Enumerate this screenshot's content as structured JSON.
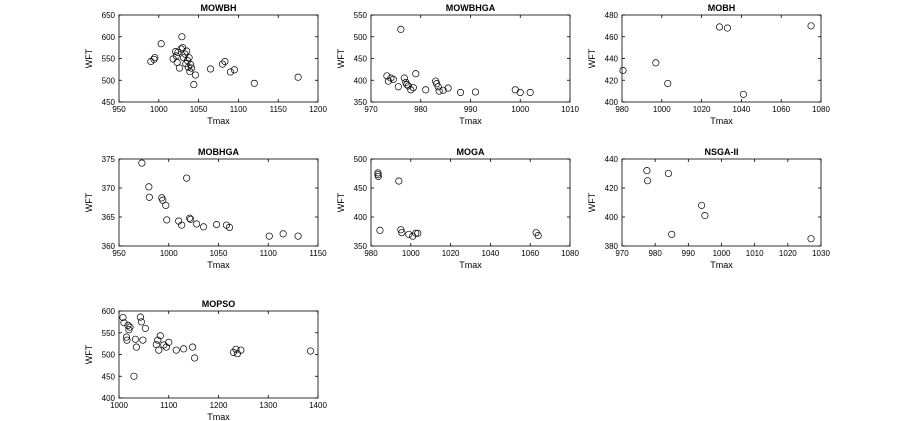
{
  "chart_data": [
    {
      "type": "scatter",
      "title": "MOWBH",
      "xlabel": "Tmax",
      "ylabel": "WFT",
      "xlim": [
        950,
        1200
      ],
      "ylim": [
        450,
        650
      ],
      "xticks": [
        950,
        1000,
        1050,
        1100,
        1150,
        1200
      ],
      "yticks": [
        450,
        500,
        550,
        600,
        650
      ],
      "grid": false,
      "points": [
        [
          990,
          543
        ],
        [
          994,
          548
        ],
        [
          995,
          552
        ],
        [
          1003,
          584
        ],
        [
          1018,
          549
        ],
        [
          1021,
          566
        ],
        [
          1022,
          556
        ],
        [
          1023,
          541
        ],
        [
          1024,
          564
        ],
        [
          1026,
          528
        ],
        [
          1028,
          572
        ],
        [
          1029,
          600
        ],
        [
          1030,
          575
        ],
        [
          1031,
          552
        ],
        [
          1033,
          560
        ],
        [
          1034,
          538
        ],
        [
          1035,
          567
        ],
        [
          1036,
          545
        ],
        [
          1037,
          530
        ],
        [
          1038,
          552
        ],
        [
          1039,
          520
        ],
        [
          1040,
          536
        ],
        [
          1041,
          528
        ],
        [
          1044,
          490
        ],
        [
          1046,
          512
        ],
        [
          1065,
          526
        ],
        [
          1080,
          537
        ],
        [
          1083,
          543
        ],
        [
          1090,
          519
        ],
        [
          1095,
          524
        ],
        [
          1120,
          493
        ],
        [
          1175,
          507
        ]
      ]
    },
    {
      "type": "scatter",
      "title": "MOWBHGA",
      "xlabel": "Tmax",
      "ylabel": "WFT",
      "xlim": [
        970,
        1010
      ],
      "ylim": [
        350,
        550
      ],
      "xticks": [
        970,
        980,
        990,
        1000,
        1010
      ],
      "yticks": [
        350,
        400,
        450,
        500,
        550
      ],
      "grid": false,
      "points": [
        [
          973.2,
          410
        ],
        [
          973.5,
          398
        ],
        [
          974,
          405
        ],
        [
          974.5,
          402
        ],
        [
          975.5,
          385
        ],
        [
          976,
          517
        ],
        [
          976.7,
          405
        ],
        [
          977,
          395
        ],
        [
          977.2,
          390
        ],
        [
          977.5,
          387
        ],
        [
          978,
          378
        ],
        [
          978.5,
          383
        ],
        [
          979,
          415
        ],
        [
          981,
          378
        ],
        [
          983,
          398
        ],
        [
          983.2,
          392
        ],
        [
          983.5,
          385
        ],
        [
          983.7,
          375
        ],
        [
          984.5,
          377
        ],
        [
          985.5,
          382
        ],
        [
          988,
          372
        ],
        [
          991,
          373
        ],
        [
          999,
          378
        ],
        [
          1000,
          372
        ],
        [
          1002,
          372
        ]
      ]
    },
    {
      "type": "scatter",
      "title": "MOBH",
      "xlabel": "Tmax",
      "ylabel": "WFT",
      "xlim": [
        980,
        1080
      ],
      "ylim": [
        400,
        480
      ],
      "xticks": [
        980,
        1000,
        1020,
        1040,
        1060,
        1080
      ],
      "yticks": [
        400,
        420,
        440,
        460,
        480
      ],
      "grid": false,
      "points": [
        [
          980.5,
          429
        ],
        [
          997,
          436
        ],
        [
          1003,
          417
        ],
        [
          1029,
          469
        ],
        [
          1033,
          468
        ],
        [
          1041,
          407
        ],
        [
          1075,
          470
        ]
      ]
    },
    {
      "type": "scatter",
      "title": "MOBHGA",
      "xlabel": "Tmax",
      "ylabel": "WFT",
      "xlim": [
        950,
        1150
      ],
      "ylim": [
        360,
        375
      ],
      "xticks": [
        950,
        1000,
        1050,
        1100,
        1150
      ],
      "yticks": [
        360,
        365,
        370,
        375
      ],
      "grid": false,
      "points": [
        [
          973,
          374.3
        ],
        [
          980,
          370.2
        ],
        [
          980.5,
          368.4
        ],
        [
          993,
          368.3
        ],
        [
          994,
          367.9
        ],
        [
          997,
          367
        ],
        [
          998,
          364.5
        ],
        [
          1010,
          364.3
        ],
        [
          1013,
          363.6
        ],
        [
          1018,
          371.7
        ],
        [
          1021,
          364.8
        ],
        [
          1022,
          364.6
        ],
        [
          1028,
          363.8
        ],
        [
          1035,
          363.3
        ],
        [
          1048,
          363.7
        ],
        [
          1058,
          363.6
        ],
        [
          1061,
          363.2
        ],
        [
          1101,
          361.7
        ],
        [
          1115,
          362.1
        ],
        [
          1130,
          361.7
        ]
      ]
    },
    {
      "type": "scatter",
      "title": "MOGA",
      "xlabel": "Tmax",
      "ylabel": "WFT",
      "xlim": [
        980,
        1080
      ],
      "ylim": [
        350,
        500
      ],
      "xticks": [
        980,
        1000,
        1020,
        1040,
        1060,
        1080
      ],
      "yticks": [
        350,
        400,
        450,
        500
      ],
      "grid": false,
      "points": [
        [
          983.5,
          476
        ],
        [
          983.5,
          473
        ],
        [
          983.7,
          470
        ],
        [
          984.5,
          377
        ],
        [
          994,
          462
        ],
        [
          995,
          378
        ],
        [
          995.5,
          373
        ],
        [
          999,
          370
        ],
        [
          1001,
          367
        ],
        [
          1002.5,
          372
        ],
        [
          1003.5,
          372
        ],
        [
          1063,
          373
        ],
        [
          1064,
          368
        ]
      ]
    },
    {
      "type": "scatter",
      "title": "NSGA-II",
      "xlabel": "Tmax",
      "ylabel": "WFT",
      "xlim": [
        970,
        1030
      ],
      "ylim": [
        380,
        440
      ],
      "xticks": [
        970,
        980,
        990,
        1000,
        1010,
        1020,
        1030
      ],
      "yticks": [
        380,
        400,
        420,
        440
      ],
      "grid": false,
      "points": [
        [
          977.5,
          432
        ],
        [
          977.7,
          425
        ],
        [
          984,
          430
        ],
        [
          985,
          388
        ],
        [
          994,
          408
        ],
        [
          995,
          401
        ],
        [
          1027,
          385
        ]
      ]
    },
    {
      "type": "scatter",
      "title": "MOPSO",
      "xlabel": "Tmax",
      "ylabel": "WFT",
      "xlim": [
        1000,
        1400
      ],
      "ylim": [
        400,
        600
      ],
      "xticks": [
        1000,
        1100,
        1200,
        1300,
        1400
      ],
      "yticks": [
        400,
        450,
        500,
        550,
        600
      ],
      "grid": false,
      "points": [
        [
          1008,
          585
        ],
        [
          1010,
          573
        ],
        [
          1015,
          540
        ],
        [
          1016,
          533
        ],
        [
          1018,
          567
        ],
        [
          1020,
          557
        ],
        [
          1022,
          563
        ],
        [
          1030,
          450
        ],
        [
          1033,
          535
        ],
        [
          1035,
          517
        ],
        [
          1043,
          586
        ],
        [
          1045,
          575
        ],
        [
          1048,
          533
        ],
        [
          1053,
          560
        ],
        [
          1075,
          523
        ],
        [
          1078,
          533
        ],
        [
          1080,
          510
        ],
        [
          1083,
          543
        ],
        [
          1090,
          522
        ],
        [
          1095,
          517
        ],
        [
          1100,
          528
        ],
        [
          1115,
          510
        ],
        [
          1130,
          513
        ],
        [
          1148,
          517
        ],
        [
          1152,
          492
        ],
        [
          1230,
          505
        ],
        [
          1235,
          512
        ],
        [
          1238,
          502
        ],
        [
          1245,
          510
        ],
        [
          1385,
          508
        ]
      ]
    }
  ]
}
